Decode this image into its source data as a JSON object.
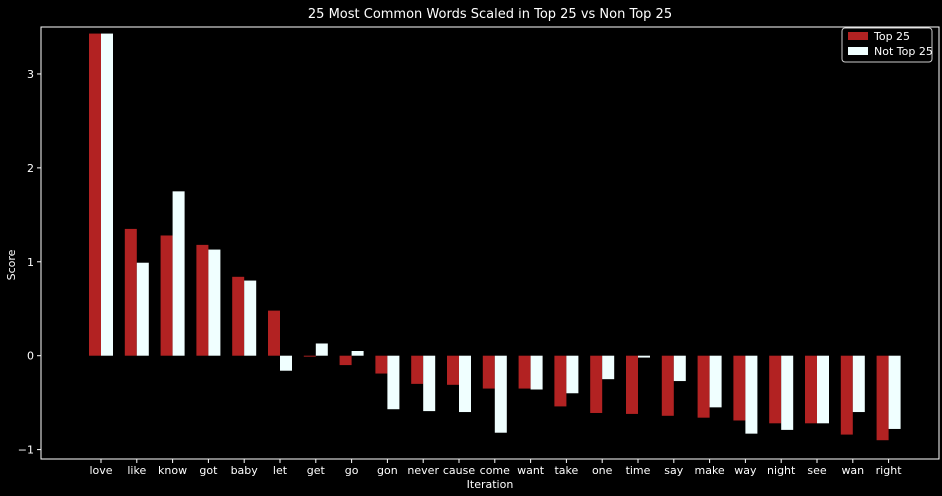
{
  "chart_data": {
    "type": "bar",
    "title": "25 Most Common Words Scaled in Top 25 vs Non Top 25",
    "xlabel": "Iteration",
    "ylabel": "Score",
    "ylim": [
      -1.1,
      3.5
    ],
    "yticks": [
      -1,
      0,
      1,
      2,
      3
    ],
    "grid": false,
    "legend_position": "top-right",
    "categories": [
      "love",
      "like",
      "know",
      "got",
      "baby",
      "let",
      "get",
      "go",
      "gon",
      "never",
      "cause",
      "come",
      "want",
      "take",
      "one",
      "time",
      "say",
      "make",
      "way",
      "night",
      "see",
      "wan",
      "right"
    ],
    "series": [
      {
        "name": "Top 25",
        "color": "#b22222",
        "values": [
          3.43,
          1.35,
          1.28,
          1.18,
          0.84,
          0.48,
          -0.01,
          -0.1,
          -0.19,
          -0.3,
          -0.31,
          -0.35,
          -0.35,
          -0.54,
          -0.61,
          -0.62,
          -0.64,
          -0.66,
          -0.69,
          -0.72,
          -0.72,
          -0.84,
          -0.9
        ]
      },
      {
        "name": "Not Top 25",
        "color": "#f0ffff",
        "values": [
          3.43,
          0.99,
          1.75,
          1.13,
          0.8,
          -0.16,
          0.13,
          0.05,
          -0.57,
          -0.59,
          -0.6,
          -0.82,
          -0.36,
          -0.4,
          -0.25,
          -0.02,
          -0.27,
          -0.55,
          -0.83,
          -0.79,
          -0.72,
          -0.6,
          -0.78
        ]
      }
    ]
  }
}
